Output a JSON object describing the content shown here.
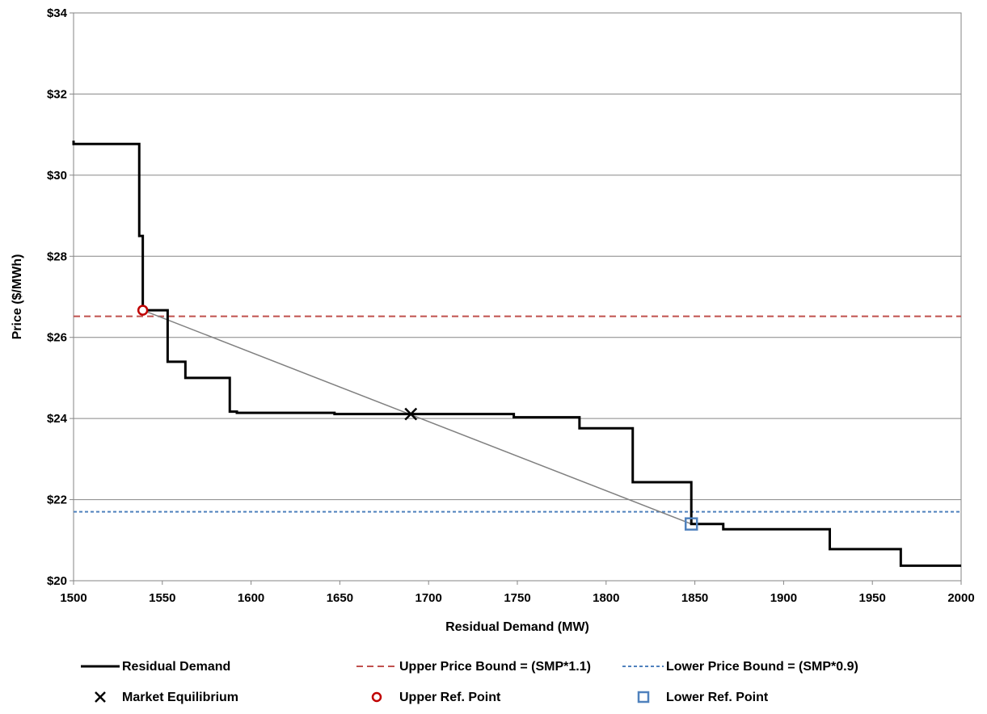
{
  "chart_data": {
    "type": "line",
    "title": "",
    "xlabel": "Residual Demand (MW)",
    "ylabel": "Price ($/MWh)",
    "xlim": [
      1500,
      2000
    ],
    "ylim": [
      20,
      34
    ],
    "x_ticks": [
      "1500",
      "1550",
      "1600",
      "1650",
      "1700",
      "1750",
      "1800",
      "1850",
      "1900",
      "1950",
      "2000"
    ],
    "y_ticks": [
      "$20",
      "$22",
      "$24",
      "$26",
      "$28",
      "$30",
      "$32",
      "$34"
    ],
    "y_tick_values": [
      20,
      22,
      24,
      26,
      28,
      30,
      32,
      34
    ],
    "x_tick_values": [
      1500,
      1550,
      1600,
      1650,
      1700,
      1750,
      1800,
      1850,
      1900,
      1950,
      2000
    ],
    "grid": "horizontal",
    "legend_position": "bottom",
    "series": [
      {
        "name": "Residual Demand",
        "style": "step",
        "color": "#000000",
        "points": [
          [
            1500,
            30.85
          ],
          [
            1500,
            30.77
          ],
          [
            1537,
            30.77
          ],
          [
            1537,
            28.5
          ],
          [
            1539,
            28.5
          ],
          [
            1539,
            26.67
          ],
          [
            1553,
            26.67
          ],
          [
            1553,
            25.4
          ],
          [
            1563,
            25.4
          ],
          [
            1563,
            25.0
          ],
          [
            1588,
            25.0
          ],
          [
            1588,
            24.17
          ],
          [
            1592,
            24.17
          ],
          [
            1592,
            24.14
          ],
          [
            1647,
            24.14
          ],
          [
            1647,
            24.11
          ],
          [
            1748,
            24.11
          ],
          [
            1748,
            24.03
          ],
          [
            1785,
            24.03
          ],
          [
            1785,
            23.76
          ],
          [
            1815,
            23.76
          ],
          [
            1815,
            22.43
          ],
          [
            1848,
            22.43
          ],
          [
            1848,
            21.4
          ],
          [
            1866,
            21.4
          ],
          [
            1866,
            21.27
          ],
          [
            1926,
            21.27
          ],
          [
            1926,
            20.78
          ],
          [
            1966,
            20.78
          ],
          [
            1966,
            20.37
          ],
          [
            2000,
            20.37
          ]
        ]
      },
      {
        "name": "Upper Price Bound = (SMP*1.1)",
        "style": "dashed",
        "color": "#c0504d",
        "y": 26.52
      },
      {
        "name": "Lower Price Bound = (SMP*0.9)",
        "style": "dashed",
        "color": "#4f81bd",
        "y": 21.7
      },
      {
        "name": "Market Equilibrium",
        "style": "marker-x",
        "color": "#000000",
        "x": 1690,
        "y": 24.11
      },
      {
        "name": "Upper Ref. Point",
        "style": "marker-circle",
        "color": "#c00000",
        "x": 1539,
        "y": 26.67
      },
      {
        "name": "Lower Ref. Point",
        "style": "marker-square",
        "color": "#4f81bd",
        "x": 1848,
        "y": 21.4
      }
    ],
    "reference_line": {
      "color": "#808080",
      "from": [
        1539,
        26.67
      ],
      "to": [
        1848,
        21.4
      ]
    },
    "legend": {
      "residual_demand": "Residual Demand",
      "upper_bound": "Upper Price Bound = (SMP*1.1)",
      "lower_bound": "Lower Price Bound = (SMP*0.9)",
      "market_equilibrium": "Market Equilibrium",
      "upper_ref": "Upper Ref. Point",
      "lower_ref": "Lower Ref. Point"
    }
  }
}
